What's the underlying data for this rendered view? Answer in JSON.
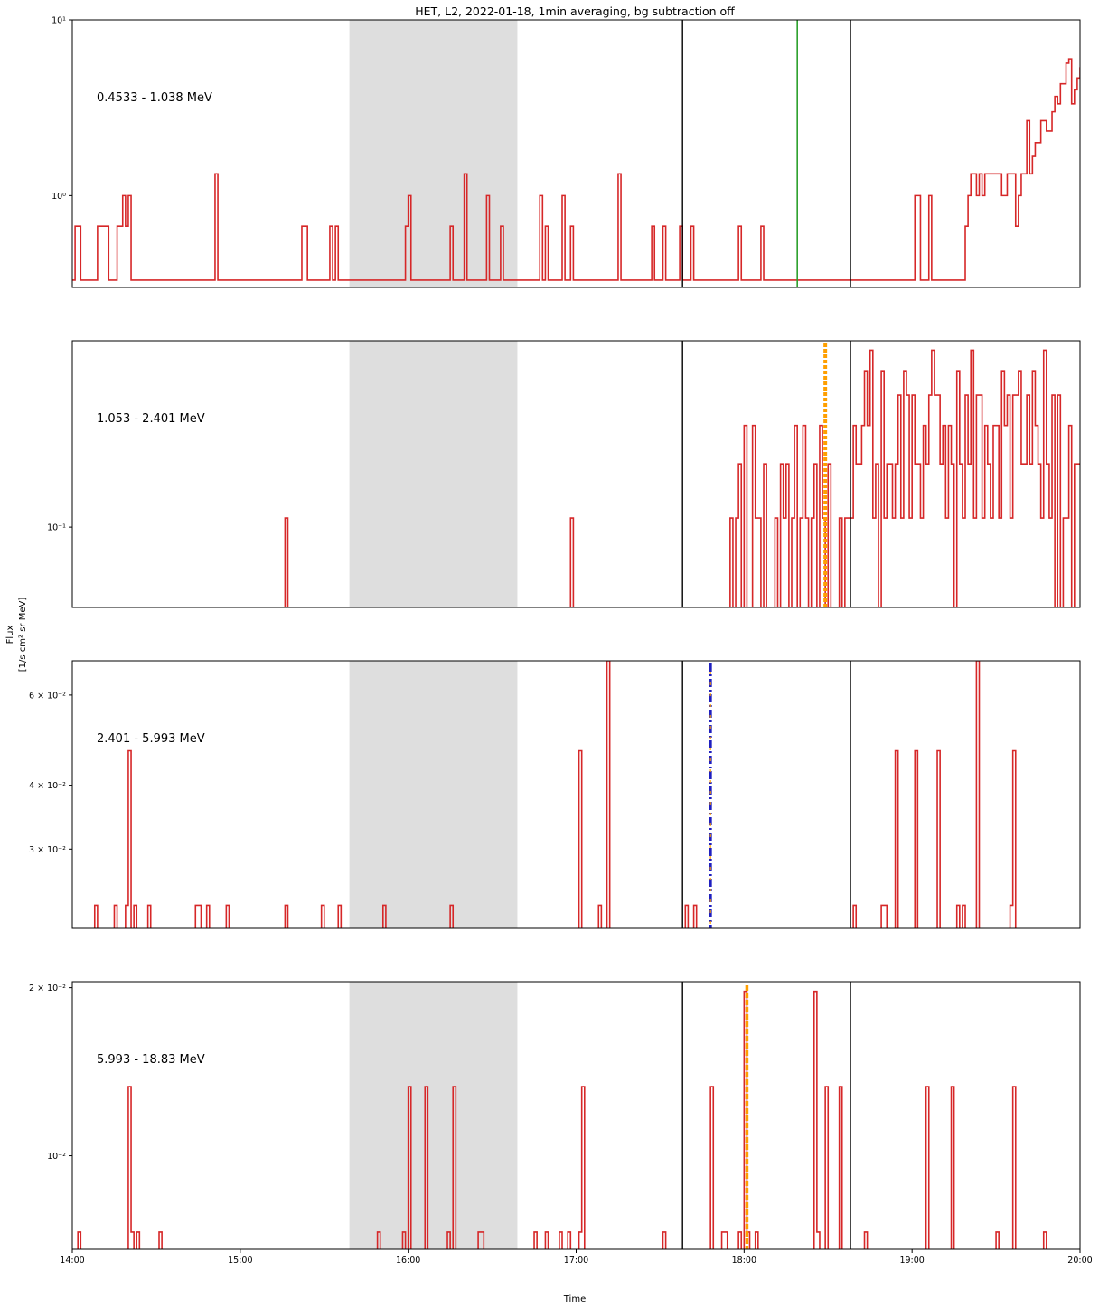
{
  "figure": {
    "title": "HET, L2, 2022-01-18, 1min averaging, bg subtraction off",
    "xlabel": "Time",
    "ylabel_line1": "Flux",
    "ylabel_line2": "[1/s cm² sr MeV]"
  },
  "chart_data": {
    "type": "line",
    "step": true,
    "x_axis": {
      "range": [
        "14:00",
        "20:00"
      ],
      "ticks": [
        "14:00",
        "15:00",
        "16:00",
        "17:00",
        "18:00",
        "19:00",
        "20:00"
      ]
    },
    "colors": {
      "flux": "#d62728",
      "shade": "#dedede",
      "event_line": "#000000",
      "onset_green": "#2ca02c",
      "onset_orange": "#ff9f00",
      "onset_blue": "#1f1fbf"
    },
    "panels": [
      {
        "label": "0.4533 - 1.038 MeV",
        "yscale": "log",
        "ylim": [
          0.3,
          10
        ],
        "yticks": [
          {
            "v": 10,
            "label": "10¹"
          },
          {
            "v": 1,
            "label": "10⁰"
          }
        ],
        "shaded": [
          "15:39",
          "16:39"
        ],
        "vlines": [
          "17:38",
          "18:38"
        ],
        "onset": {
          "time": "18:19",
          "style": "green"
        },
        "values": [
          0.33,
          0.67,
          0.67,
          0.33,
          0.33,
          0.33,
          0.33,
          0.33,
          0.33,
          0.67,
          0.67,
          0.67,
          0.67,
          0.33,
          0.33,
          0.33,
          0.67,
          0.67,
          1.0,
          0.67,
          1.0,
          0.33,
          0.33,
          0.33,
          0.33,
          0.33,
          0.33,
          0.33,
          0.33,
          0.33,
          0.33,
          0.33,
          0.33,
          0.33,
          0.33,
          0.33,
          0.33,
          0.33,
          0.33,
          0.33,
          0.33,
          0.33,
          0.33,
          0.33,
          0.33,
          0.33,
          0.33,
          0.33,
          0.33,
          0.33,
          0.33,
          1.33,
          0.33,
          0.33,
          0.33,
          0.33,
          0.33,
          0.33,
          0.33,
          0.33,
          0.33,
          0.33,
          0.33,
          0.33,
          0.33,
          0.33,
          0.33,
          0.33,
          0.33,
          0.33,
          0.33,
          0.33,
          0.33,
          0.33,
          0.33,
          0.33,
          0.33,
          0.33,
          0.33,
          0.33,
          0.33,
          0.33,
          0.67,
          0.67,
          0.33,
          0.33,
          0.33,
          0.33,
          0.33,
          0.33,
          0.33,
          0.33,
          0.67,
          0.33,
          0.67,
          0.33,
          0.33,
          0.33,
          0.33,
          0.33,
          0.33,
          0.33,
          0.33,
          0.33,
          0.33,
          0.33,
          0.33,
          0.33,
          0.33,
          0.33,
          0.33,
          0.33,
          0.33,
          0.33,
          0.33,
          0.33,
          0.33,
          0.33,
          0.33,
          0.67,
          1.0,
          0.33,
          0.33,
          0.33,
          0.33,
          0.33,
          0.33,
          0.33,
          0.33,
          0.33,
          0.33,
          0.33,
          0.33,
          0.33,
          0.33,
          0.67,
          0.33,
          0.33,
          0.33,
          0.33,
          1.33,
          0.33,
          0.33,
          0.33,
          0.33,
          0.33,
          0.33,
          0.33,
          1.0,
          0.33,
          0.33,
          0.33,
          0.33,
          0.67,
          0.33,
          0.33,
          0.33,
          0.33,
          0.33,
          0.33,
          0.33,
          0.33,
          0.33,
          0.33,
          0.33,
          0.33,
          0.33,
          1.0,
          0.33,
          0.67,
          0.33,
          0.33,
          0.33,
          0.33,
          0.33,
          1.0,
          0.33,
          0.33,
          0.67,
          0.33,
          0.33,
          0.33,
          0.33,
          0.33,
          0.33,
          0.33,
          0.33,
          0.33,
          0.33,
          0.33,
          0.33,
          0.33,
          0.33,
          0.33,
          0.33,
          1.33,
          0.33,
          0.33,
          0.33,
          0.33,
          0.33,
          0.33,
          0.33,
          0.33,
          0.33,
          0.33,
          0.33,
          0.67,
          0.33,
          0.33,
          0.33,
          0.67,
          0.33,
          0.33,
          0.33,
          0.33,
          0.33,
          0.67,
          0.33,
          0.33,
          0.33,
          0.67,
          0.33,
          0.33,
          0.33,
          0.33,
          0.33,
          0.33,
          0.33,
          0.33,
          0.33,
          0.33,
          0.33,
          0.33,
          0.33,
          0.33,
          0.33,
          0.33,
          0.67,
          0.33,
          0.33,
          0.33,
          0.33,
          0.33,
          0.33,
          0.33,
          0.67,
          0.33,
          0.33,
          0.33,
          0.33,
          0.33,
          0.33,
          0.33,
          0.33,
          0.33,
          0.33,
          0.33,
          0.33,
          0.33,
          0.33,
          0.33,
          0.33,
          0.33,
          0.33,
          0.33,
          0.33,
          0.33,
          0.33,
          0.33,
          0.33,
          0.33,
          0.33,
          0.33,
          0.33,
          0.33,
          0.33,
          0.33,
          0.33,
          0.33,
          0.33,
          0.33,
          0.33,
          0.33,
          0.33,
          0.33,
          0.33,
          0.33,
          0.33,
          0.33,
          0.33,
          0.33,
          0.33,
          0.33,
          0.33,
          0.33,
          0.33,
          0.33,
          0.33,
          0.33,
          0.33,
          1.0,
          1.0,
          0.33,
          0.33,
          0.33,
          1.0,
          0.33,
          0.33,
          0.33,
          0.33,
          0.33,
          0.33,
          0.33,
          0.33,
          0.33,
          0.33,
          0.33,
          0.33,
          0.67,
          1.0,
          1.33,
          1.33,
          1.0,
          1.33,
          1.0,
          1.33,
          1.33,
          1.33,
          1.33,
          1.33,
          1.33,
          1.0,
          1.0,
          1.33,
          1.33,
          1.33,
          0.67,
          1.0,
          1.33,
          1.33,
          2.67,
          1.33,
          1.67,
          2.0,
          2.0,
          2.67,
          2.67,
          2.33,
          2.33,
          3.0,
          3.67,
          3.33,
          4.33,
          4.33,
          5.67,
          6.0,
          3.33,
          4.0,
          4.67,
          5.33,
          4.33,
          5.67,
          5.0,
          4.67,
          3.67,
          5.33,
          5.0,
          5.67,
          4.0,
          3.33,
          4.67,
          5.67,
          4.67,
          4.0,
          5.67,
          6.0,
          5.0,
          4.67,
          4.67,
          5.0,
          5.67,
          5.33,
          5.67,
          6.0,
          5.0,
          2.67,
          4.67,
          5.0,
          5.33,
          5.67,
          4.33,
          5.0,
          4.67,
          5.33,
          6.33,
          5.33,
          6.67,
          5.0,
          5.33,
          6.0,
          4.67,
          6.67,
          6.0,
          5.67,
          6.33,
          5.67,
          5.0,
          4.67,
          5.33,
          6.0,
          6.33,
          5.67,
          6.67,
          5.67,
          6.0,
          6.33,
          5.0,
          4.33,
          5.67,
          6.33,
          5.33,
          5.0,
          4.67,
          5.0,
          5.67,
          5.0,
          6.0,
          5.67,
          5.0,
          6.0,
          4.67,
          4.0,
          5.33,
          4.67,
          6.0,
          6.33,
          5.67,
          7.0,
          5.33,
          5.67,
          6.33,
          5.0,
          6.33,
          5.67,
          5.0,
          5.33,
          6.33,
          5.0,
          6.0,
          5.67,
          4.33,
          4.33,
          4.67,
          5.0,
          3.67,
          5.67,
          4.67,
          5.33,
          5.0,
          5.33,
          4.67,
          5.33,
          6.0,
          5.67,
          5.33,
          6.33,
          5.0,
          4.67,
          5.67,
          5.0,
          5.0,
          5.33,
          5.0,
          4.67,
          4.33,
          5.33,
          4.33,
          5.0,
          4.67,
          5.0,
          5.67,
          5.33,
          5.67,
          6.33,
          5.0,
          5.67,
          4.67,
          4.33,
          5.0,
          5.0,
          4.0,
          5.33,
          5.33,
          4.67,
          4.33,
          5.67,
          6.0,
          3.0,
          3.33,
          4.33,
          3.33,
          4.33,
          3.0,
          3.67,
          4.33,
          4.33,
          3.0,
          3.33,
          4.67,
          6.0,
          4.33,
          3.67,
          6.33,
          6.0,
          5.67,
          5.33,
          5.67,
          4.67,
          4.33,
          4.67,
          6.33,
          4.33,
          4.67,
          7.0,
          4.67,
          7.0,
          5.33,
          6.33,
          6.0,
          6.0,
          5.0,
          5.33,
          4.67,
          4.67,
          6.0,
          5.0,
          6.67,
          8.33,
          6.0,
          7.0,
          5.67,
          6.33,
          4.33,
          4.67,
          5.33,
          4.67,
          6.0,
          6.0,
          5.0,
          5.33,
          4.67,
          5.0,
          4.33,
          4.67,
          6.0,
          5.67,
          6.33,
          4.67,
          5.67,
          5.33,
          4.67,
          5.0,
          5.33,
          6.0,
          5.0,
          4.33,
          5.67,
          6.33,
          4.33,
          5.33,
          5.67,
          5.0,
          4.67,
          5.67,
          5.0,
          5.33,
          4.67,
          4.33,
          4.67,
          5.0,
          4.33,
          5.0,
          5.33,
          4.67,
          5.0,
          4.33,
          5.0,
          5.67,
          5.0,
          6.0,
          4.33,
          4.67,
          4.33,
          5.0,
          5.33,
          7.67,
          5.33,
          6.0,
          5.0,
          4.33,
          4.0,
          3.67,
          4.33,
          2.0,
          3.67,
          4.33,
          3.67,
          4.0,
          4.33,
          2.67,
          2.67,
          3.67,
          4.67,
          5.0,
          2.33,
          3.0
        ],
        "labels_note": ""
      },
      {
        "label": "1.053 - 2.401 MeV",
        "yscale": "log",
        "ylim": [
          0.055,
          0.4
        ],
        "yticks": [
          {
            "v": 0.1,
            "label": "10⁻¹"
          }
        ],
        "shaded": [
          "15:39",
          "16:39"
        ],
        "vlines": [
          "17:38",
          "18:38"
        ],
        "onset": {
          "time": "18:29",
          "style": "orange-dotted"
        }
      },
      {
        "label": "2.401 - 5.993 MeV",
        "yscale": "log",
        "ylim": [
          0.021,
          0.07
        ],
        "yticks": [
          {
            "v": 0.06,
            "label": "6 × 10⁻²"
          },
          {
            "v": 0.04,
            "label": "4 × 10⁻²"
          },
          {
            "v": 0.03,
            "label": "3 × 10⁻²"
          }
        ],
        "shaded": [
          "15:39",
          "16:39"
        ],
        "vlines": [
          "17:38",
          "18:38"
        ],
        "onset": {
          "time": "17:48",
          "style": "blue-orange-dashdot"
        }
      },
      {
        "label": "5.993 - 18.83 MeV",
        "yscale": "log",
        "ylim": [
          0.0068,
          0.0205
        ],
        "yticks": [
          {
            "v": 0.02,
            "label": "2 × 10⁻²"
          },
          {
            "v": 0.01,
            "label": "10⁻²"
          }
        ],
        "shaded": [
          "15:39",
          "16:39"
        ],
        "vlines": [
          "17:38",
          "18:38"
        ],
        "onset": {
          "time": "18:01",
          "style": "orange-dashed"
        }
      }
    ]
  }
}
